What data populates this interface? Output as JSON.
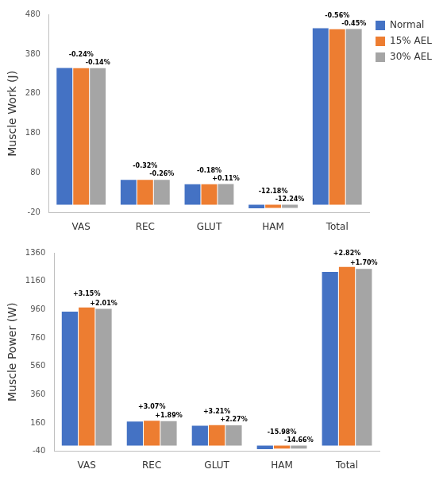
{
  "chart_data": [
    {
      "type": "bar",
      "y_label": "Muscle Work (J)",
      "categories": [
        "VAS",
        "REC",
        "GLUT",
        "HAM",
        "Total"
      ],
      "series": [
        {
          "name": "Normal",
          "color": "#4472c4",
          "values": [
            345,
            63,
            52,
            -9,
            445
          ]
        },
        {
          "name": "15% AEL",
          "color": "#ed7d31",
          "values": [
            344.2,
            62.8,
            51.9,
            -7.9,
            442.5
          ],
          "annotations": [
            "-0.24%",
            "-0.32%",
            "-0.18%",
            "-12.18%",
            "-0.56%"
          ]
        },
        {
          "name": "30% AEL",
          "color": "#a5a5a5",
          "values": [
            344.5,
            62.8,
            52.1,
            -7.9,
            443
          ],
          "annotations": [
            "-0.14%",
            "-0.26%",
            "+0.11%",
            "-12.24%",
            "-0.45%"
          ]
        }
      ],
      "ylim": [
        -20,
        480
      ],
      "yticks": [
        -20,
        80,
        180,
        280,
        380,
        480
      ],
      "grid": false,
      "legend": "top right"
    },
    {
      "type": "bar",
      "y_label": "Muscle Power (W)",
      "categories": [
        "VAS",
        "REC",
        "GLUT",
        "HAM",
        "Total"
      ],
      "series": [
        {
          "name": "Normal",
          "color": "#4472c4",
          "values": [
            945,
            170,
            140,
            -25,
            1225
          ]
        },
        {
          "name": "15% AEL",
          "color": "#ed7d31",
          "values": [
            975,
            175,
            144.5,
            -21,
            1260
          ],
          "annotations": [
            "+3.15%",
            "+3.07%",
            "+3.21%",
            "-15.98%",
            "+2.82%"
          ]
        },
        {
          "name": "30% AEL",
          "color": "#a5a5a5",
          "values": [
            964,
            173,
            143,
            -21.3,
            1246
          ],
          "annotations": [
            "+2.01%",
            "+1.89%",
            "+2.27%",
            "-14.66%",
            "+1.70%"
          ]
        }
      ],
      "ylim": [
        -40,
        1360
      ],
      "yticks": [
        -40,
        160,
        360,
        560,
        760,
        960,
        1160,
        1360
      ],
      "grid": false
    }
  ]
}
